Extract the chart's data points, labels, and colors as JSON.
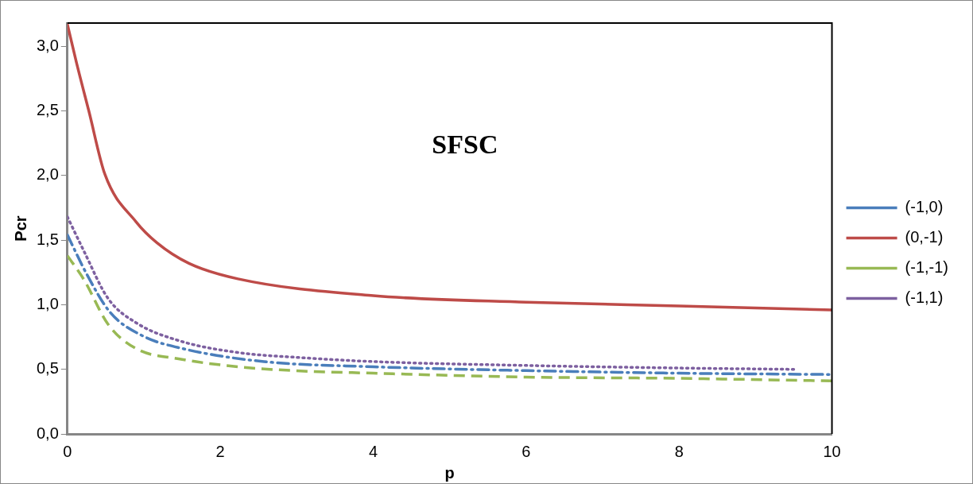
{
  "chart_data": {
    "type": "line",
    "xlabel": "p",
    "ylabel": "Pcr",
    "annotations": [
      "SFSC"
    ],
    "xlim": [
      0,
      10
    ],
    "xticks": [
      0,
      2,
      4,
      6,
      8,
      10
    ],
    "ylim": [
      0,
      3.18
    ],
    "yticks": [
      {
        "value": 0,
        "label": "0,0"
      },
      {
        "value": 0.5,
        "label": "0,5"
      },
      {
        "value": 1,
        "label": "1,0"
      },
      {
        "value": 1.5,
        "label": "1,5"
      },
      {
        "value": 2,
        "label": "2,0"
      },
      {
        "value": 2.5,
        "label": "2,5"
      },
      {
        "value": 3,
        "label": "3,0"
      }
    ],
    "grid": false,
    "legend": "right",
    "marker": "none",
    "series": [
      {
        "name": "(-1,0)",
        "color": "#4a7ebb",
        "line_style": "dashdot",
        "x": [
          0,
          0.25,
          0.56,
          0.98,
          1.51,
          2.57,
          4,
          6,
          8,
          10
        ],
        "values": [
          1.54,
          1.24,
          0.94,
          0.76,
          0.66,
          0.56,
          0.52,
          0.49,
          0.47,
          0.46
        ]
      },
      {
        "name": "(0,-1)",
        "color": "#be4b48",
        "line_style": "solid",
        "x": [
          0,
          0.12,
          0.28,
          0.49,
          0.9,
          1.17,
          1.59,
          2.23,
          4,
          6,
          8,
          10
        ],
        "values": [
          3.17,
          2.87,
          2.5,
          2.01,
          1.64,
          1.48,
          1.32,
          1.2,
          1.07,
          1.02,
          0.99,
          0.96
        ]
      },
      {
        "name": "(-1,-1)",
        "color": "#98b954",
        "line_style": "dashed",
        "x": [
          0,
          0.22,
          0.53,
          0.9,
          1.47,
          2.23,
          2.96,
          4,
          6,
          8,
          10
        ],
        "values": [
          1.38,
          1.19,
          0.85,
          0.66,
          0.58,
          0.52,
          0.49,
          0.47,
          0.44,
          0.43,
          0.41
        ]
      },
      {
        "name": "(-1,1)",
        "color": "#7d60a0",
        "line_style": "dotted",
        "x": [
          0,
          0.22,
          0.53,
          0.9,
          1.47,
          2.23,
          3.07,
          4,
          6,
          8,
          9.5
        ],
        "values": [
          1.68,
          1.41,
          1.05,
          0.86,
          0.72,
          0.63,
          0.59,
          0.56,
          0.53,
          0.51,
          0.5
        ]
      }
    ]
  }
}
